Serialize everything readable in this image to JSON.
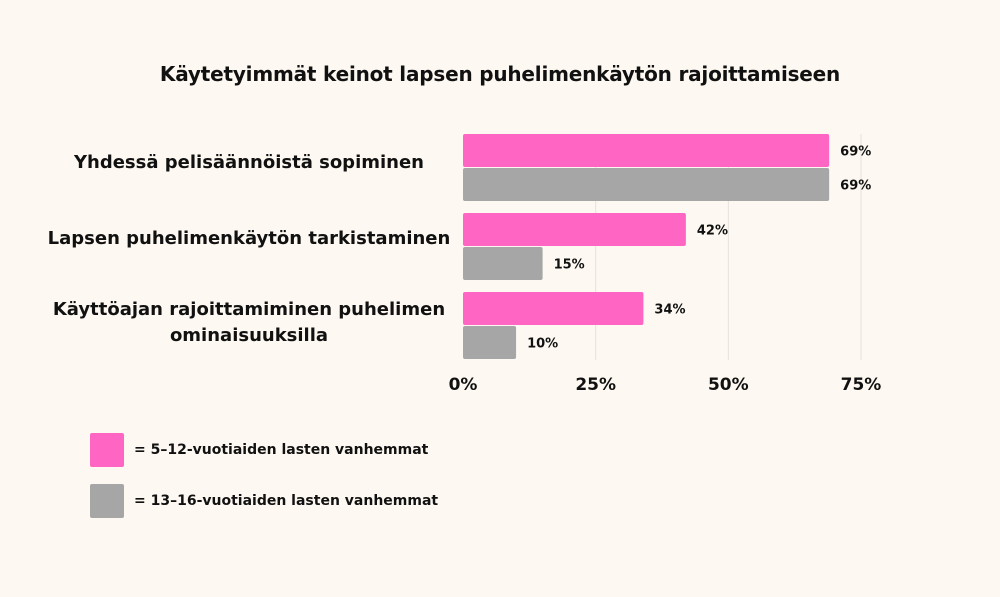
{
  "chart_data": {
    "type": "bar",
    "orientation": "horizontal",
    "title": "Käytetyimmät keinot lapsen puhelimenkäytön rajoittamiseen",
    "categories": [
      "Yhdessä pelisäännöistä sopiminen",
      "Lapsen puhelimenkäytön tarkistaminen",
      "Käyttöajan rajoittamiminen puhelimen ominaisuuksilla"
    ],
    "series": [
      {
        "name": "= 5–12-vuotiaiden lasten vanhemmat",
        "color": "#ff66c4",
        "values": [
          69,
          42,
          34
        ],
        "labels": [
          "69%",
          "42%",
          "34%"
        ]
      },
      {
        "name": "= 13–16-vuotiaiden lasten vanhemmat",
        "color": "#a6a6a6",
        "values": [
          69,
          15,
          10
        ],
        "labels": [
          "69%",
          "15%",
          "10%"
        ]
      }
    ],
    "xticks": [
      "0%",
      "25%",
      "50%",
      "75%"
    ],
    "xlim": [
      0,
      75
    ],
    "grid": true,
    "legend_position": "bottom-left"
  }
}
